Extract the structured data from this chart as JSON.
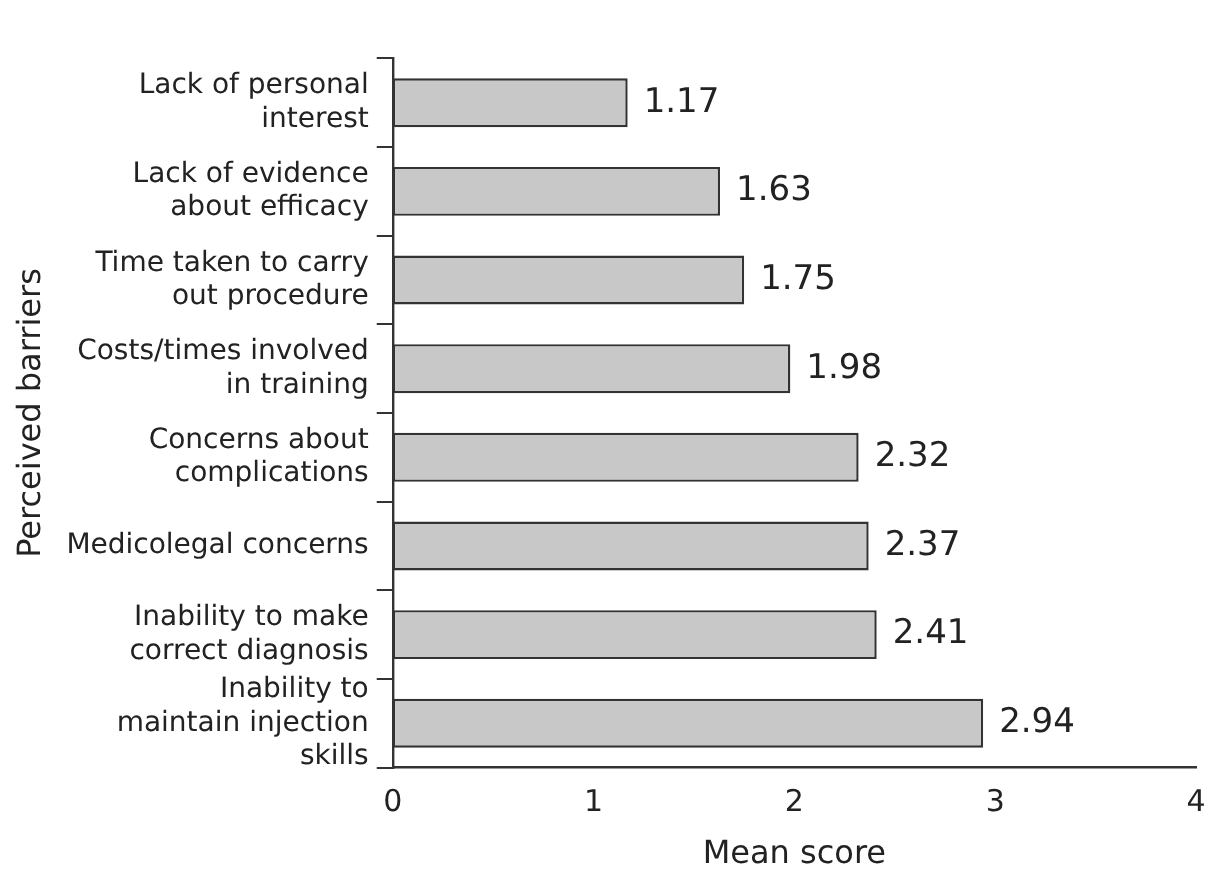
{
  "chart_data": {
    "type": "bar",
    "orientation": "horizontal",
    "categories": [
      "Lack of personal interest",
      "Lack of evidence about efficacy",
      "Time taken to carry out procedure",
      "Costs/times involved in training",
      "Concerns about complications",
      "Medicolegal concerns",
      "Inability to make correct diagnosis",
      "Inability to maintain injection skills"
    ],
    "values": [
      1.17,
      1.63,
      1.75,
      1.98,
      2.32,
      2.37,
      2.41,
      2.94
    ],
    "color": "#c8c8c8",
    "xlim": [
      0,
      4
    ],
    "xticks": [
      0,
      1,
      2,
      3,
      4
    ],
    "xlabel": "Mean score",
    "ylabel": "Perceived barriers",
    "data_labels": true,
    "grid": false,
    "legend": false
  }
}
